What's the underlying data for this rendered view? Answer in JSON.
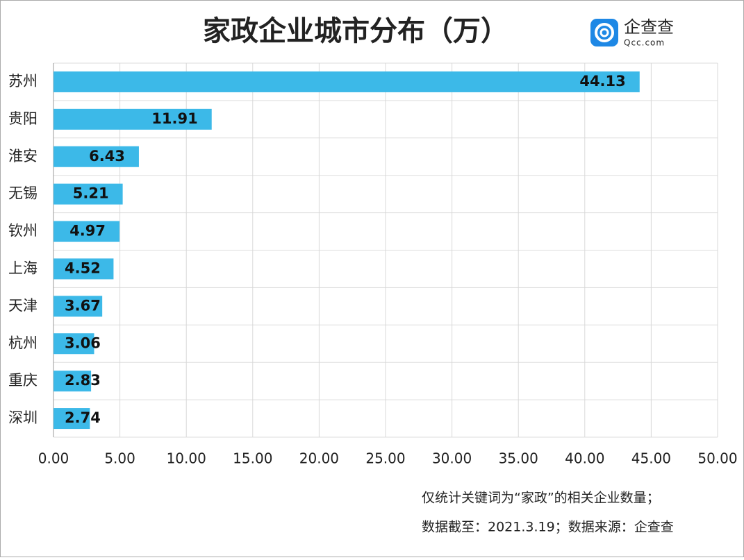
{
  "chart_data": {
    "type": "hbar",
    "title": "家政企业城市分布（万）",
    "categories": [
      "苏州",
      "贵阳",
      "淮安",
      "无锡",
      "钦州",
      "上海",
      "天津",
      "杭州",
      "重庆",
      "深圳"
    ],
    "values": [
      44.13,
      11.91,
      6.43,
      5.21,
      4.97,
      4.52,
      3.67,
      3.06,
      2.83,
      2.74
    ],
    "color": "#3cb9e8",
    "xlim": [
      0,
      50
    ],
    "xticks": [
      {
        "value": 0,
        "label": "0.00"
      },
      {
        "value": 5,
        "label": "5.00"
      },
      {
        "value": 10,
        "label": "10.00"
      },
      {
        "value": 15,
        "label": "15.00"
      },
      {
        "value": 20,
        "label": "20.00"
      },
      {
        "value": 25,
        "label": "25.00"
      },
      {
        "value": 30,
        "label": "30.00"
      },
      {
        "value": 35,
        "label": "35.00"
      },
      {
        "value": 40,
        "label": "40.00"
      },
      {
        "value": 45,
        "label": "45.00"
      },
      {
        "value": 50,
        "label": "50.00"
      }
    ],
    "grid": true,
    "notes": [
      "仅统计关键词为“家政”的相关企业数量；",
      "数据截至：2021.3.19；数据来源：企查查"
    ]
  },
  "logo": {
    "name": "企查查",
    "url": "Qcc.com"
  }
}
